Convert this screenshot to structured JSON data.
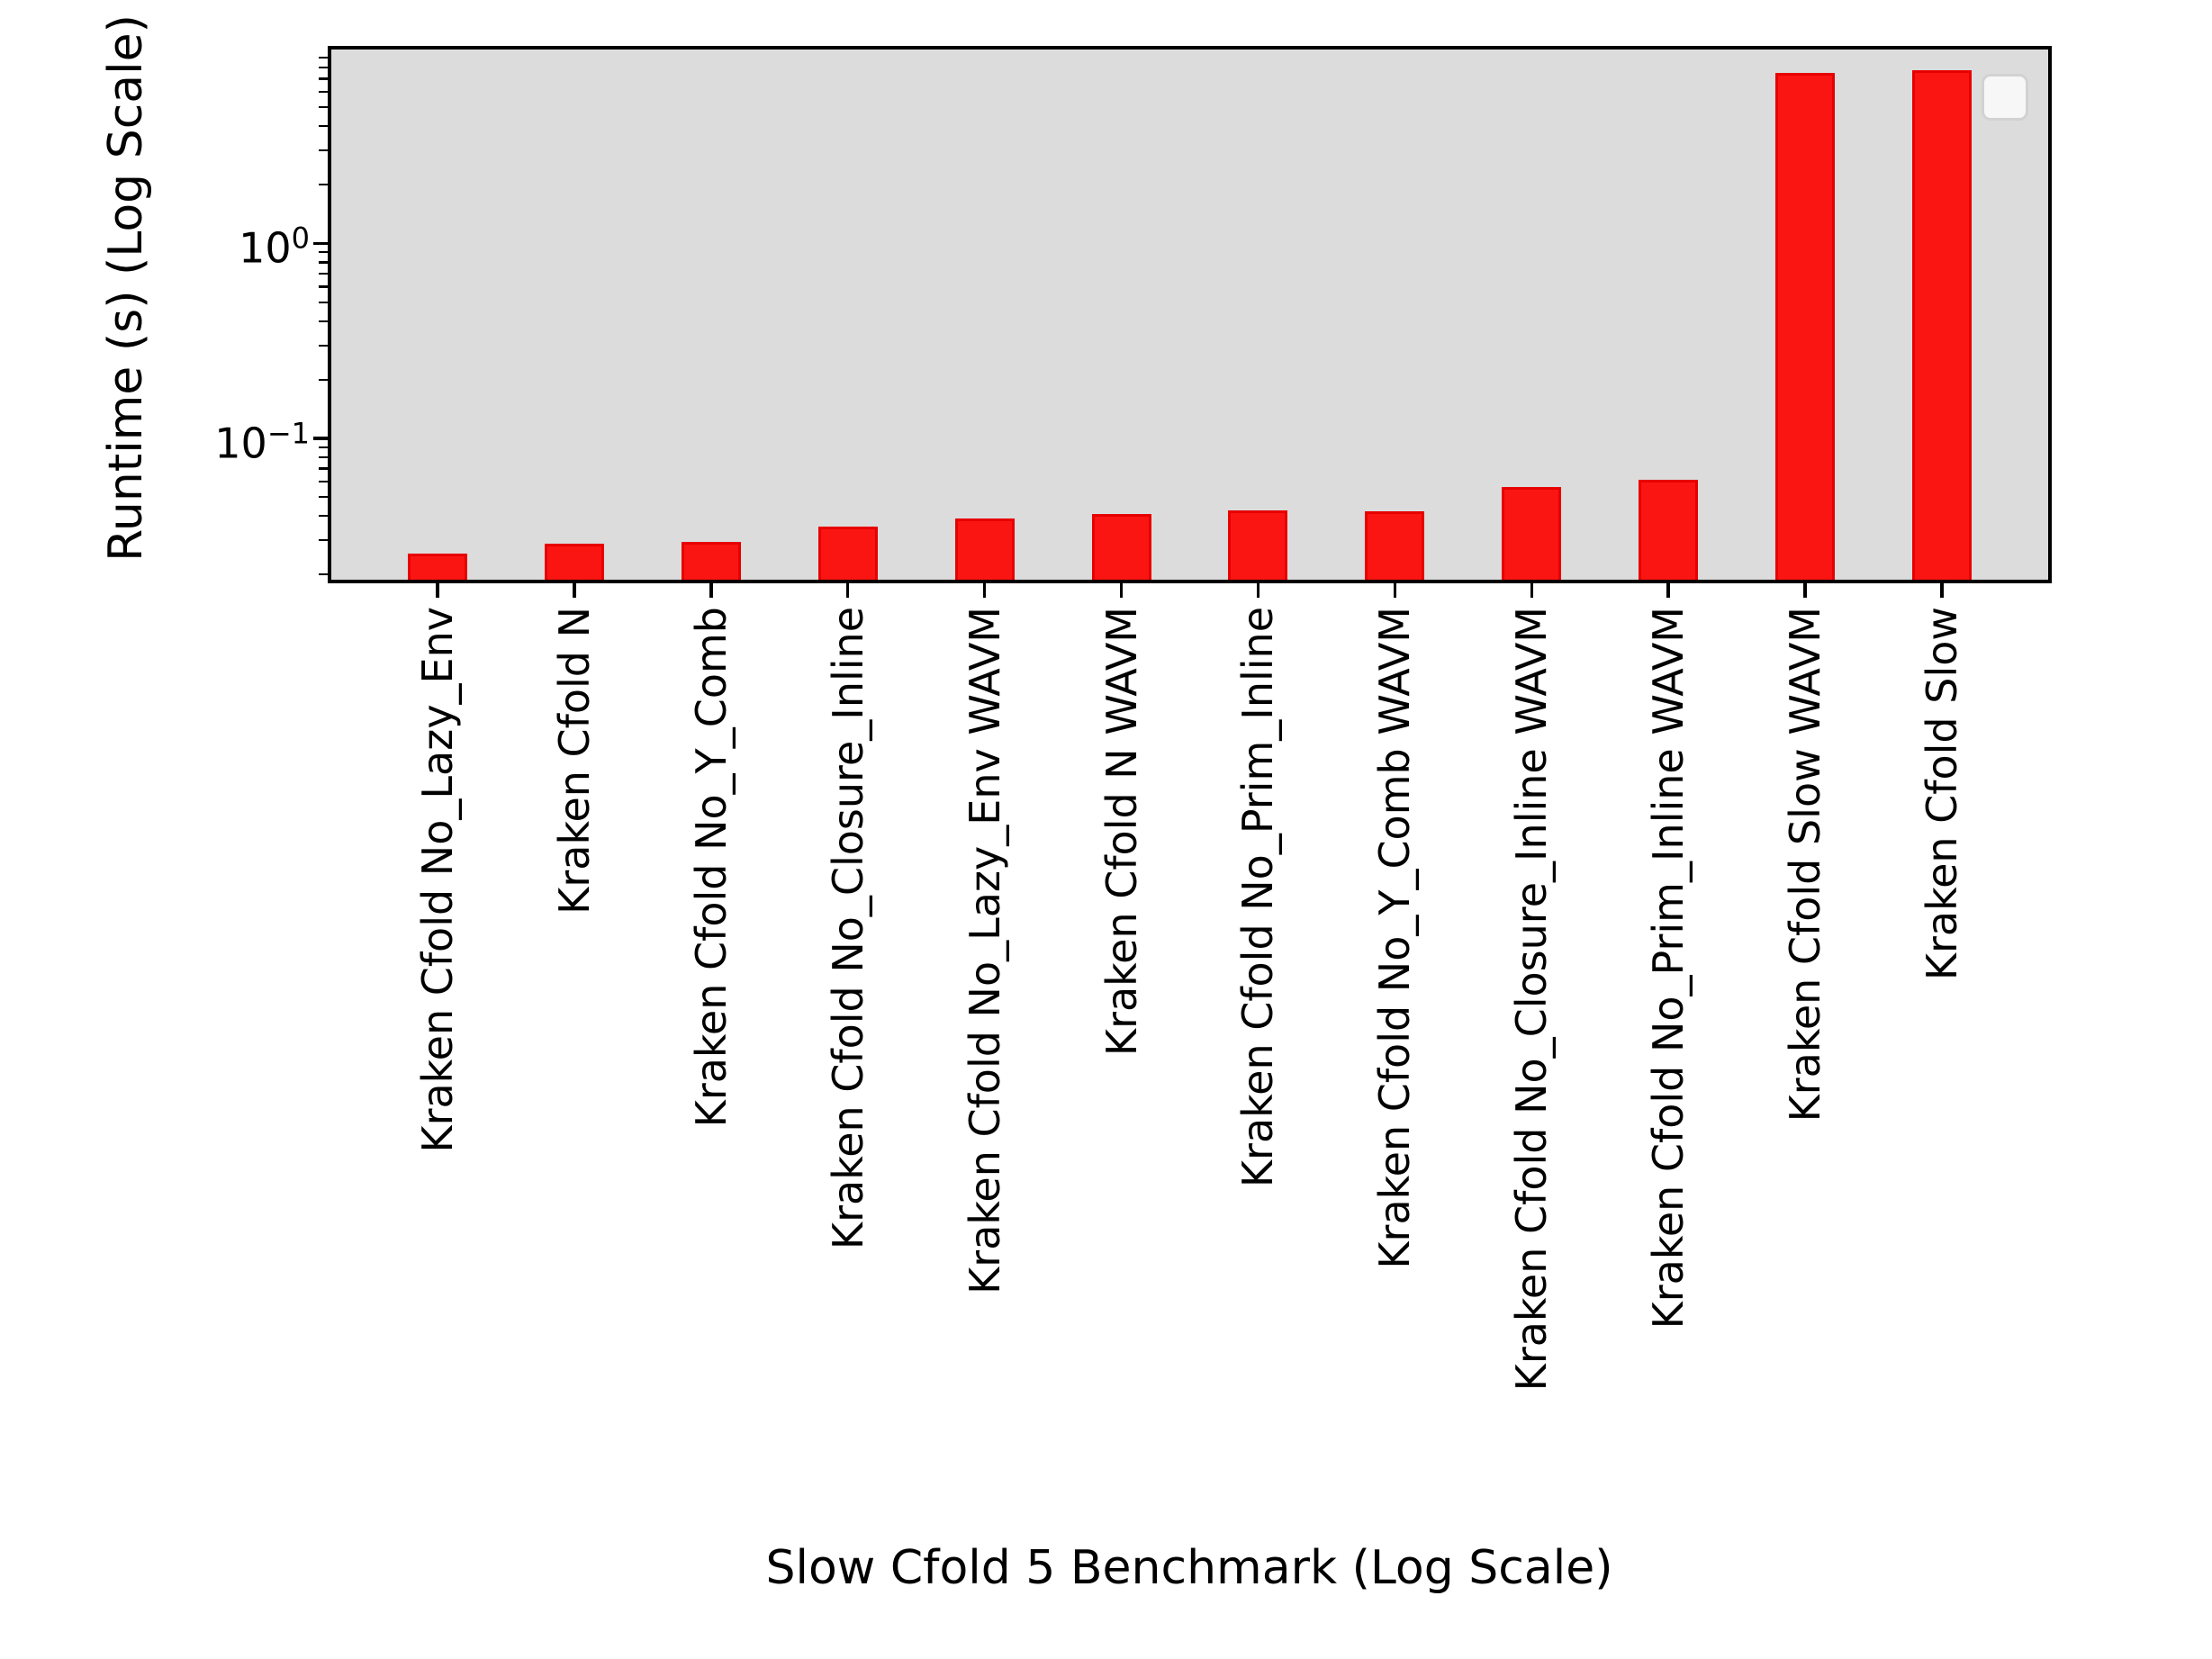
{
  "figure": {
    "background": "#ffffff",
    "plot_background": "#dcdcdc",
    "bar_fill_color": "#fa1512",
    "bar_edge_color": "#e70000",
    "axis_color": "#000000"
  },
  "chart_data": {
    "type": "bar",
    "title": "",
    "xlabel": "Slow Cfold 5 Benchmark (Log Scale)",
    "ylabel": "Runtime (s) (Log Scale)",
    "yscale": "log",
    "ylim": [
      0.0188,
      9.9
    ],
    "grid": false,
    "legend": {
      "visible": true,
      "position": "upper right",
      "entries": []
    },
    "yticks": [
      {
        "value": 1,
        "base": "10",
        "exp": "0"
      },
      {
        "value": 0.1,
        "base": "10",
        "exp": "−1"
      }
    ],
    "categories": [
      "Kraken Cfold No_Lazy_Env",
      "Kraken Cfold N",
      "Kraken Cfold No_Y_Comb",
      "Kraken Cfold No_Closure_Inline",
      "Kraken Cfold No_Lazy_Env WAVM",
      "Kraken Cfold N WAVM",
      "Kraken Cfold No_Prim_Inline",
      "Kraken Cfold No_Y_Comb WAVM",
      "Kraken Cfold No_Closure_Inline WAVM",
      "Kraken Cfold No_Prim_Inline WAVM",
      "Kraken Cfold Slow WAVM",
      "Kraken Cfold Slow"
    ],
    "values": [
      0.0255,
      0.0287,
      0.0294,
      0.0351,
      0.0386,
      0.041,
      0.0427,
      0.0422,
      0.0565,
      0.0611,
      7.48,
      7.72
    ]
  }
}
